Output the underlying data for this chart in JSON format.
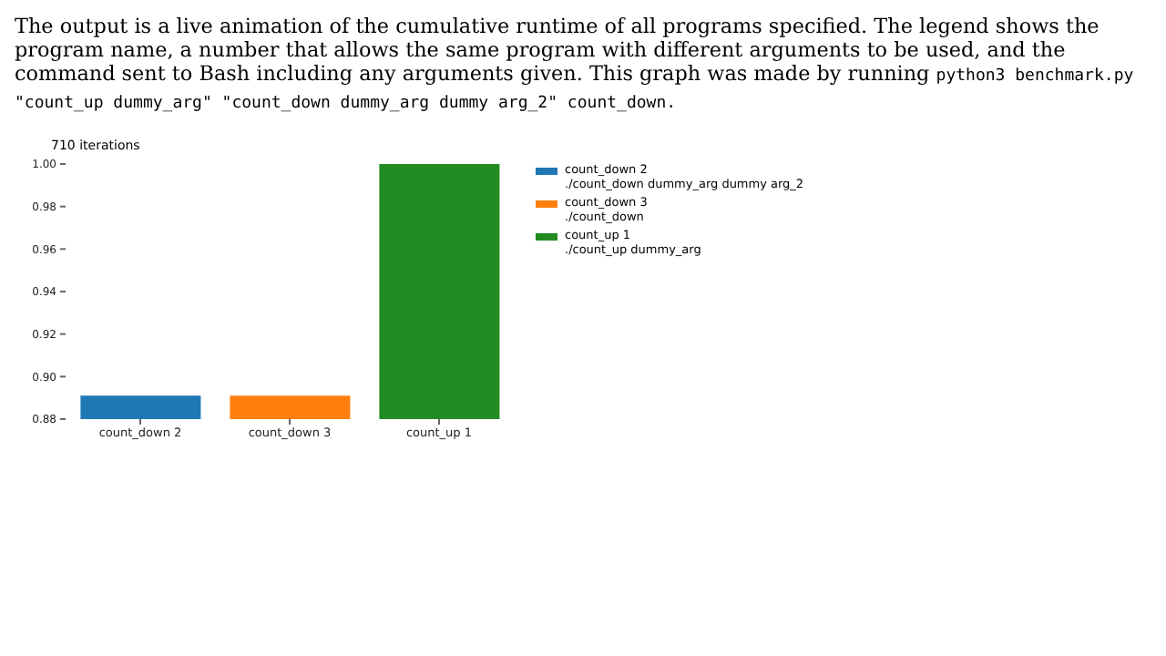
{
  "chart_data": {
    "type": "bar",
    "subtitle": "The output is a live animation of the cumulative runtime of all programs specified. The legend shows the program name, a number that allows the same program with different arguments to be used, and the command sent to Bash including any arguments given. This graph was made by running",
    "annotations": [
      "python3 benchmark.py \"count_up dummy_arg\" \"count_down dummy_arg dummy arg_2\" count_down."
    ],
    "title": "710 iterations",
    "categories": [
      "count_down 2",
      "count_down 3",
      "count_up 1"
    ],
    "stacked": true,
    "series": [
      {
        "name": "count_down 2\n./count_down dummy_arg dummy arg_2",
        "color": "#1f77b4",
        "values": [
          0.891,
          null,
          null
        ]
      },
      {
        "name": "count_down 3\n./count_down",
        "color": "#ff7f0e",
        "values": [
          null,
          0.891,
          null
        ]
      },
      {
        "name": "count_up 1\n./count_up dummy_arg",
        "color": "#228b22",
        "values": [
          null,
          null,
          1.0
        ]
      }
    ],
    "ylim": [
      0.88,
      1.0
    ],
    "yticks": [
      {
        "value": 0.88,
        "label": "0.88"
      },
      {
        "value": 0.9,
        "label": "0.90"
      },
      {
        "value": 0.92,
        "label": "0.92"
      },
      {
        "value": 0.94,
        "label": "0.94"
      },
      {
        "value": 0.96,
        "label": "0.96"
      },
      {
        "value": 0.98,
        "label": "0.98"
      },
      {
        "value": 1.0,
        "label": "1.00"
      }
    ],
    "legend": "right"
  }
}
